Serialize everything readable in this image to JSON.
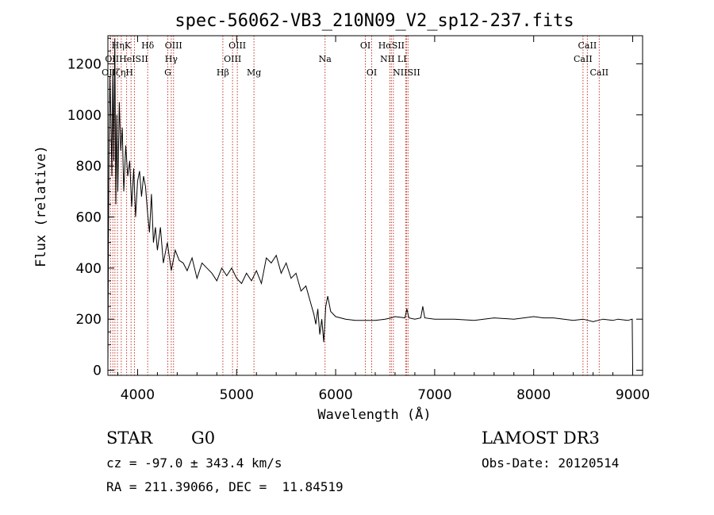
{
  "chart_data": {
    "type": "line",
    "title": "spec-56062-VB3_210N09_V2_sp12-237.fits",
    "xlabel": "Wavelength (Å)",
    "ylabel": "Flux (relative)",
    "xlim": [
      3700,
      9100
    ],
    "ylim": [
      -20,
      1310
    ],
    "xticks": [
      4000,
      5000,
      6000,
      7000,
      8000,
      9000
    ],
    "yticks": [
      0,
      200,
      400,
      600,
      800,
      1000,
      1200
    ],
    "series": [
      {
        "name": "flux",
        "x": [
          3700,
          3705,
          3712,
          3720,
          3730,
          3740,
          3750,
          3760,
          3770,
          3780,
          3790,
          3800,
          3815,
          3830,
          3845,
          3860,
          3880,
          3900,
          3920,
          3940,
          3960,
          3980,
          4000,
          4020,
          4040,
          4060,
          4080,
          4100,
          4120,
          4140,
          4160,
          4180,
          4200,
          4230,
          4260,
          4300,
          4340,
          4380,
          4420,
          4460,
          4500,
          4550,
          4600,
          4650,
          4700,
          4750,
          4800,
          4850,
          4900,
          4950,
          5000,
          5050,
          5100,
          5150,
          5200,
          5250,
          5300,
          5350,
          5400,
          5450,
          5500,
          5550,
          5600,
          5650,
          5700,
          5750,
          5780,
          5800,
          5820,
          5840,
          5860,
          5880,
          5900,
          5920,
          5950,
          6000,
          6100,
          6200,
          6300,
          6400,
          6500,
          6560,
          6600,
          6700,
          6720,
          6740,
          6800,
          6860,
          6880,
          6900,
          7000,
          7200,
          7400,
          7600,
          7800,
          8000,
          8100,
          8200,
          8400,
          8500,
          8600,
          8700,
          8800,
          8850,
          8950,
          8995,
          9000
        ],
        "y": [
          0,
          480,
          900,
          1150,
          1000,
          760,
          1180,
          820,
          1300,
          650,
          1000,
          700,
          1050,
          860,
          950,
          700,
          880,
          760,
          820,
          640,
          790,
          600,
          740,
          780,
          680,
          760,
          720,
          620,
          540,
          690,
          500,
          560,
          470,
          560,
          420,
          500,
          390,
          470,
          430,
          420,
          390,
          440,
          360,
          420,
          400,
          380,
          350,
          400,
          370,
          400,
          360,
          340,
          380,
          350,
          390,
          340,
          440,
          420,
          450,
          380,
          420,
          360,
          380,
          310,
          330,
          260,
          220,
          180,
          240,
          140,
          200,
          110,
          250,
          290,
          230,
          210,
          200,
          195,
          195,
          195,
          200,
          205,
          210,
          205,
          240,
          205,
          200,
          205,
          250,
          205,
          200,
          200,
          195,
          205,
          200,
          210,
          205,
          205,
          195,
          200,
          190,
          200,
          195,
          200,
          195,
          200,
          0
        ]
      }
    ],
    "spectral_lines": [
      {
        "label": "HηK",
        "x": 3835,
        "row": 1
      },
      {
        "label": "Hδ",
        "x": 4102,
        "row": 1
      },
      {
        "label": "OIII",
        "x": 4363,
        "row": 1
      },
      {
        "label": "OIII",
        "x": 5007,
        "row": 1
      },
      {
        "label": "Na",
        "x": 5893,
        "row": 2
      },
      {
        "label": "OI",
        "x": 6300,
        "row": 1
      },
      {
        "label": "HαSII",
        "x": 6563,
        "row": 1
      },
      {
        "label": "CaII",
        "x": 8542,
        "row": 1
      },
      {
        "label": "OIIHeISII",
        "x": 3889,
        "row": 2
      },
      {
        "label": "Hγ",
        "x": 4340,
        "row": 2
      },
      {
        "label": "OIII",
        "x": 4959,
        "row": 2
      },
      {
        "label": "NII LI",
        "x": 6583,
        "row": 2
      },
      {
        "label": "CaII",
        "x": 8498,
        "row": 2
      },
      {
        "label": "OIIζηH",
        "x": 3797,
        "row": 3
      },
      {
        "label": "G",
        "x": 4305,
        "row": 3
      },
      {
        "label": "Hβ",
        "x": 4861,
        "row": 3
      },
      {
        "label": "Mg",
        "x": 5175,
        "row": 3
      },
      {
        "label": "OI",
        "x": 6364,
        "row": 3
      },
      {
        "label": "NIISII",
        "x": 6716,
        "row": 3
      },
      {
        "label": "CaII",
        "x": 8662,
        "row": 3
      }
    ],
    "line_marker_wavelengths": [
      3727,
      3750,
      3771,
      3797,
      3835,
      3889,
      3934,
      3968,
      4102,
      4305,
      4340,
      4363,
      4861,
      4959,
      5007,
      5175,
      5893,
      6300,
      6364,
      6548,
      6563,
      6583,
      6707,
      6716,
      6731,
      8498,
      8542,
      8662
    ],
    "marker_color": "#c0392b"
  },
  "info": {
    "object_class": "STAR",
    "subclass": "G0",
    "survey": "LAMOST DR3",
    "cz": "cz = -97.0 ± 343.4 km/s",
    "obs_date": "Obs-Date: 20120514",
    "coords": "RA = 211.39066, DEC =  11.84519"
  }
}
